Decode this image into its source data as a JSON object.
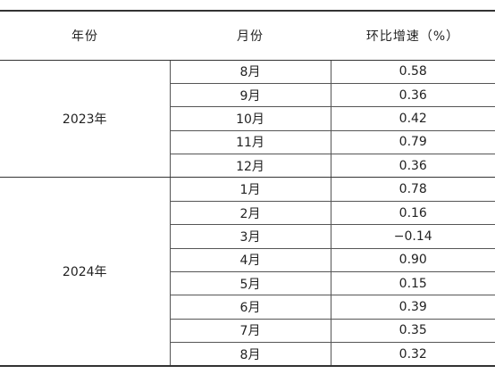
{
  "table": {
    "header": [
      "年份",
      "月份",
      "环比增速（%）"
    ],
    "groups": [
      {
        "year": "2023年",
        "rows": [
          [
            "8月",
            "0.58"
          ],
          [
            "9月",
            "0.36"
          ],
          [
            "10月",
            "0.42"
          ],
          [
            "11月",
            "0.79"
          ],
          [
            "12月",
            "0.36"
          ]
        ]
      },
      {
        "year": "2024年",
        "rows": [
          [
            "1月",
            "0.78"
          ],
          [
            "2月",
            "0.16"
          ],
          [
            "3月",
            "−0.14"
          ],
          [
            "4月",
            "0.90"
          ],
          [
            "5月",
            "0.15"
          ],
          [
            "6月",
            "0.39"
          ],
          [
            "7月",
            "0.35"
          ],
          [
            "8月",
            "0.32"
          ]
        ]
      }
    ]
  }
}
